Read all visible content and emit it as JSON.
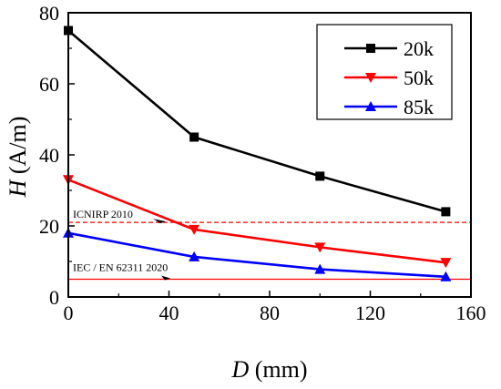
{
  "chart_data": {
    "type": "line",
    "xlabel_var": "D",
    "xlabel_unit": " (mm)",
    "ylabel_var": "H",
    "ylabel_unit": " (A/m)",
    "xlim": [
      0,
      160
    ],
    "ylim": [
      0,
      80
    ],
    "xticks": [
      0,
      40,
      80,
      120,
      160
    ],
    "yticks": [
      0,
      20,
      40,
      60,
      80
    ],
    "xtick_labels": [
      "0",
      "40",
      "80",
      "120",
      "160"
    ],
    "ytick_labels": [
      "0",
      "20",
      "40",
      "60",
      "80"
    ],
    "grid": false,
    "legend_position": "top-right",
    "series": [
      {
        "name": "20k",
        "color": "#000000",
        "marker": "square",
        "x": [
          0,
          50,
          100,
          150
        ],
        "y": [
          75,
          45,
          34,
          24
        ]
      },
      {
        "name": "50k",
        "color": "#ff0000",
        "marker": "triangle-down",
        "x": [
          0,
          50,
          100,
          150
        ],
        "y": [
          33,
          19,
          14,
          9.7
        ]
      },
      {
        "name": "85k",
        "color": "#0000ff",
        "marker": "triangle-up",
        "x": [
          0,
          50,
          100,
          150
        ],
        "y": [
          18,
          11.3,
          7.8,
          5.7
        ]
      }
    ],
    "reference_lines": [
      {
        "label": "ICNIRP 2010",
        "y": 21,
        "color": "#ff0000",
        "style": "dashed"
      },
      {
        "label": "IEC / EN 62311 2020",
        "y": 5,
        "color": "#ff0000",
        "style": "solid"
      }
    ]
  }
}
